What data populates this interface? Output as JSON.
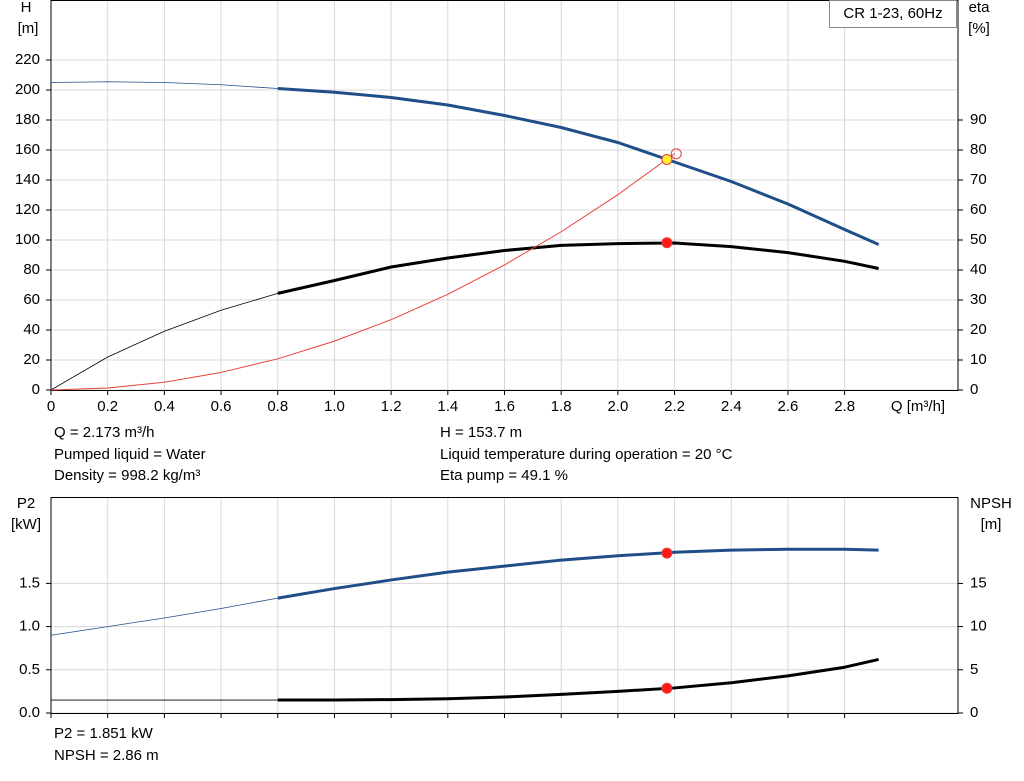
{
  "chart_data": [
    {
      "type": "line",
      "title": "CR 1-23, 60Hz",
      "y_label": "H",
      "y_unit": "[m]",
      "y2_label": "eta",
      "y2_unit": "[%]",
      "x_label": "Q [m³/h]",
      "xlim": [
        0,
        3.2
      ],
      "xticks": [
        0,
        {
          "value": 0.2,
          "label": "0.2"
        },
        {
          "value": 0.4,
          "label": "0.4"
        },
        {
          "value": 0.6,
          "label": "0.6"
        },
        {
          "value": 0.8,
          "label": "0.8"
        },
        {
          "value": 1.0,
          "label": "1.0"
        },
        {
          "value": 1.2,
          "label": "1.2"
        },
        {
          "value": 1.4,
          "label": "1.4"
        },
        {
          "value": 1.6,
          "label": "1.6"
        },
        {
          "value": 1.8,
          "label": "1.8"
        },
        {
          "value": 2.0,
          "label": "2.0"
        },
        {
          "value": 2.2,
          "label": "2.2"
        },
        {
          "value": 2.4,
          "label": "2.4"
        },
        {
          "value": 2.6,
          "label": "2.6"
        },
        {
          "value": 2.8,
          "label": "2.8"
        }
      ],
      "ylim": [
        0,
        260
      ],
      "yticks": [
        0,
        20,
        40,
        60,
        80,
        100,
        120,
        140,
        160,
        180,
        200,
        220
      ],
      "y2lim": [
        0,
        130
      ],
      "y2ticks": [
        0,
        10,
        20,
        30,
        40,
        50,
        60,
        70,
        80,
        90
      ],
      "grid": true,
      "series": [
        {
          "color": "#1f4e89",
          "axis": "y",
          "thick_from": 0.8,
          "x": [
            0,
            0.2,
            0.4,
            0.6,
            0.8,
            1.0,
            1.2,
            1.4,
            1.6,
            1.8,
            2.0,
            2.2,
            2.4,
            2.6,
            2.8,
            2.92
          ],
          "values": [
            205,
            205.5,
            205,
            203.5,
            201,
            198.5,
            195,
            190,
            183,
            175,
            165,
            152,
            139,
            124,
            107,
            97
          ]
        },
        {
          "color": "#000000",
          "axis": "y2",
          "thick_from": 0.8,
          "x": [
            0,
            0.2,
            0.4,
            0.6,
            0.8,
            1.0,
            1.2,
            1.4,
            1.6,
            1.8,
            2.0,
            2.2,
            2.4,
            2.6,
            2.8,
            2.92
          ],
          "values": [
            0,
            11,
            19.6,
            26.6,
            32.2,
            36.5,
            41,
            44,
            46.5,
            48.2,
            48.8,
            49,
            47.8,
            45.8,
            42.9,
            40.5
          ]
        },
        {
          "color": "#e8403a",
          "axis": "y",
          "x": [
            0,
            0.2,
            0.4,
            0.6,
            0.8,
            1.0,
            1.2,
            1.4,
            1.6,
            1.8,
            2.0,
            2.2
          ],
          "values": [
            0,
            1.3,
            5.2,
            11.7,
            20.8,
            32.6,
            46.9,
            63.8,
            83.4,
            105.5,
            130.2,
            157.6
          ]
        }
      ],
      "points": [
        {
          "x": 2.206,
          "value": 157.5,
          "axis": "y",
          "color": "none",
          "stroke": "#e8403a"
        },
        {
          "x": 2.173,
          "value": 153.7,
          "axis": "y",
          "color": "#ffee33",
          "stroke": "#e8403a"
        },
        {
          "x": 2.173,
          "value": 49.1,
          "axis": "y2",
          "color": "#ff1a1a",
          "stroke": "#e8403a"
        }
      ],
      "annotations": [
        "Q = 2.173 m³/h",
        "Pumped liquid = Water",
        "Density = 998.2 kg/m³",
        "H = 153.7 m",
        "Liquid temperature during operation = 20 °C",
        "Eta pump = 49.1 %"
      ]
    },
    {
      "type": "line",
      "y_label": "P2",
      "y_unit": "[kW]",
      "y2_label": "NPSH",
      "y2_unit": "[m]",
      "xlim": [
        0,
        3.2
      ],
      "ylim": [
        0,
        2.5
      ],
      "yticks": [
        {
          "value": 0,
          "label": "0.0"
        },
        {
          "value": 0.5,
          "label": "0.5"
        },
        {
          "value": 1.0,
          "label": "1.0"
        },
        {
          "value": 1.5,
          "label": "1.5"
        }
      ],
      "y2lim": [
        0,
        25
      ],
      "y2ticks": [
        0,
        5,
        10,
        15
      ],
      "grid": true,
      "series": [
        {
          "color": "#1f4e89",
          "axis": "y",
          "thick_from": 0.8,
          "x": [
            0,
            0.2,
            0.4,
            0.6,
            0.8,
            1.0,
            1.2,
            1.4,
            1.6,
            1.8,
            2.0,
            2.2,
            2.4,
            2.6,
            2.8,
            2.92
          ],
          "values": [
            0.9,
            1.0,
            1.1,
            1.21,
            1.33,
            1.44,
            1.54,
            1.63,
            1.7,
            1.77,
            1.82,
            1.86,
            1.885,
            1.895,
            1.895,
            1.885
          ]
        },
        {
          "color": "#000000",
          "axis": "y2",
          "thick_from": 0.8,
          "x": [
            0,
            0.8,
            1.0,
            1.2,
            1.4,
            1.6,
            1.8,
            2.0,
            2.2,
            2.4,
            2.6,
            2.8,
            2.92
          ],
          "values": [
            1.5,
            1.5,
            1.5,
            1.55,
            1.65,
            1.85,
            2.15,
            2.5,
            2.9,
            3.5,
            4.3,
            5.3,
            6.2
          ]
        }
      ],
      "points": [
        {
          "x": 2.173,
          "value": 1.851,
          "axis": "y",
          "color": "#ff1a1a",
          "stroke": "#e8403a"
        },
        {
          "x": 2.173,
          "value": 2.86,
          "axis": "y2",
          "color": "#ff1a1a",
          "stroke": "#e8403a"
        }
      ],
      "annotations": [
        "P2 = 1.851 kW",
        "NPSH = 2.86 m"
      ]
    }
  ]
}
